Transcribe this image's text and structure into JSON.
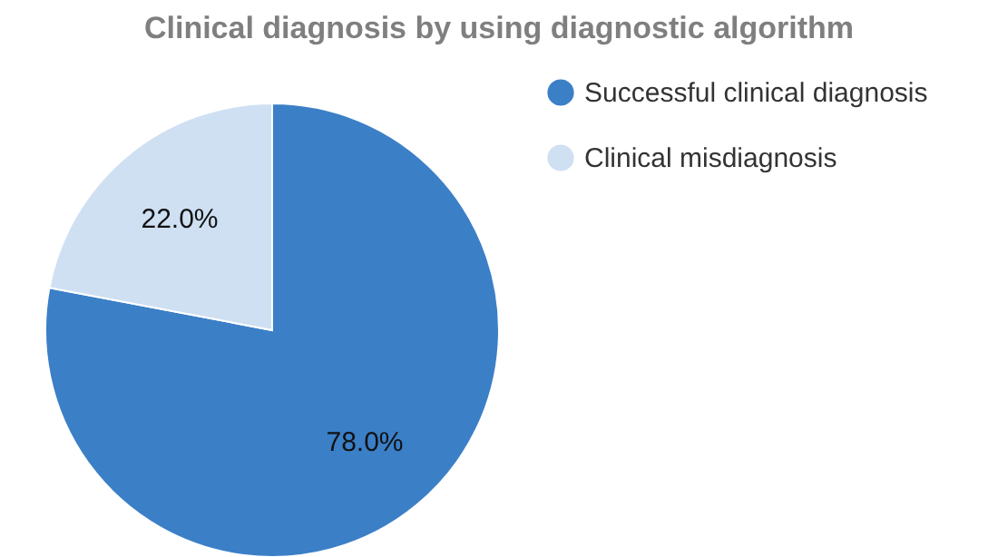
{
  "chart_data": {
    "type": "pie",
    "title": "Clinical diagnosis by using diagnostic algorithm",
    "categories": [
      "Successful clinical diagnosis",
      "Clinical misdiagnosis"
    ],
    "values": [
      78.0,
      22.0
    ],
    "colors": [
      "#3b7fc7",
      "#cfe0f3"
    ],
    "value_labels": [
      "78.0%",
      "22.0%"
    ],
    "legend": "top right"
  }
}
